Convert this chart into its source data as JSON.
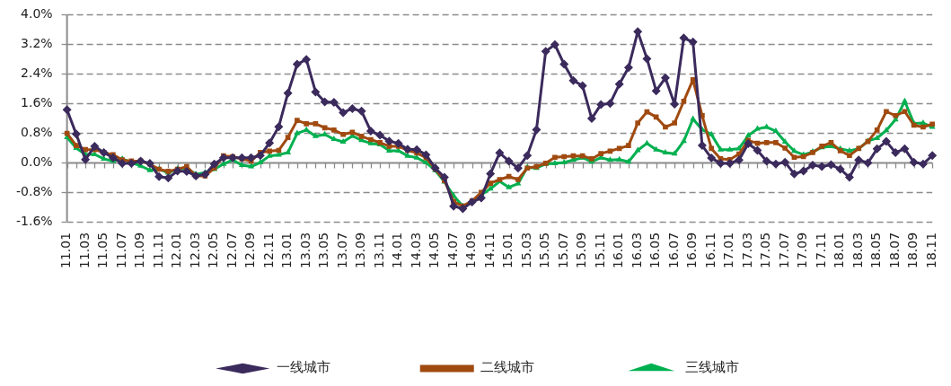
{
  "chart_data": {
    "type": "line",
    "categories": [
      "11.01",
      null,
      "11.03",
      null,
      "11.05",
      null,
      "11.07",
      null,
      "11.09",
      null,
      "11.11",
      null,
      "12.01",
      null,
      "12.03",
      null,
      "12.05",
      null,
      "12.07",
      null,
      "12.09",
      null,
      "12.11",
      null,
      "13.01",
      null,
      "13.03",
      null,
      "13.05",
      null,
      "13.07",
      null,
      "13.09",
      null,
      "13.11",
      null,
      "14.01",
      null,
      "14.03",
      null,
      "14.05",
      null,
      "14.07",
      null,
      "14.09",
      null,
      "14.11",
      null,
      "15.01",
      null,
      "15.03",
      null,
      "15.05",
      null,
      "15.07",
      null,
      "15.09",
      null,
      "15.11",
      null,
      "16.01",
      null,
      "16.03",
      null,
      "16.05",
      null,
      "16.07",
      null,
      "16.09",
      null,
      "16.11",
      null,
      "17.01",
      null,
      "17.03",
      null,
      "17.05",
      null,
      "17.07",
      null,
      "17.09",
      null,
      "17.11",
      null,
      "18.01",
      null,
      "18.03",
      null,
      "18.05",
      null,
      "18.07",
      null,
      "18.09",
      null,
      "18.11"
    ],
    "series": [
      {
        "name": "一线城市",
        "color": "#3b2a5c",
        "marker": "diamond",
        "values": [
          1.43,
          0.77,
          0.08,
          0.44,
          0.27,
          0.13,
          -0.02,
          -0.02,
          0.04,
          -0.02,
          -0.38,
          -0.42,
          -0.23,
          -0.24,
          -0.36,
          -0.32,
          -0.04,
          0.13,
          0.13,
          0.13,
          0.13,
          0.19,
          0.53,
          0.97,
          1.88,
          2.66,
          2.79,
          1.91,
          1.64,
          1.63,
          1.35,
          1.46,
          1.39,
          0.85,
          0.74,
          0.58,
          0.52,
          0.36,
          0.35,
          0.21,
          -0.15,
          -0.4,
          -1.18,
          -1.25,
          -1.07,
          -0.96,
          -0.3,
          0.26,
          0.04,
          -0.15,
          0.19,
          0.89,
          3.01,
          3.19,
          2.66,
          2.22,
          2.08,
          1.19,
          1.57,
          1.6,
          2.12,
          2.57,
          3.54,
          2.81,
          1.94,
          2.29,
          1.58,
          3.37,
          3.26,
          0.46,
          0.12,
          -0.02,
          -0.02,
          0.07,
          0.51,
          0.33,
          0.04,
          -0.04,
          0.01,
          -0.31,
          -0.23,
          -0.07,
          -0.11,
          -0.06,
          -0.18,
          -0.4,
          0.07,
          -0.01,
          0.37,
          0.57,
          0.27,
          0.37,
          0.01,
          -0.04,
          0.19
        ]
      },
      {
        "name": "二线城市",
        "color": "#a04a10",
        "marker": "square",
        "values": [
          0.79,
          0.46,
          0.35,
          0.35,
          0.27,
          0.21,
          0.07,
          0.04,
          0.04,
          -0.04,
          -0.18,
          -0.24,
          -0.18,
          -0.11,
          -0.36,
          -0.36,
          -0.15,
          0.18,
          0.16,
          0.1,
          0.04,
          0.27,
          0.31,
          0.33,
          0.68,
          1.14,
          1.05,
          1.05,
          0.94,
          0.88,
          0.76,
          0.82,
          0.71,
          0.62,
          0.54,
          0.44,
          0.44,
          0.33,
          0.26,
          0.13,
          -0.17,
          -0.49,
          -1.06,
          -1.18,
          -1.04,
          -0.81,
          -0.56,
          -0.46,
          -0.38,
          -0.46,
          -0.15,
          -0.11,
          -0.02,
          0.14,
          0.16,
          0.18,
          0.18,
          0.1,
          0.24,
          0.31,
          0.38,
          0.46,
          1.07,
          1.37,
          1.23,
          0.96,
          1.07,
          1.66,
          2.24,
          1.27,
          0.38,
          0.1,
          0.08,
          0.23,
          0.6,
          0.52,
          0.54,
          0.54,
          0.39,
          0.14,
          0.16,
          0.27,
          0.44,
          0.54,
          0.32,
          0.19,
          0.38,
          0.57,
          0.88,
          1.38,
          1.27,
          1.38,
          1.01,
          0.96,
          1.04
        ]
      },
      {
        "name": "三线城市",
        "color": "#00b050",
        "marker": "triangle",
        "values": [
          0.68,
          0.39,
          0.22,
          0.22,
          0.1,
          0.04,
          0.1,
          0.0,
          -0.09,
          -0.21,
          -0.18,
          -0.28,
          -0.17,
          -0.15,
          -0.32,
          -0.27,
          -0.18,
          -0.04,
          0.07,
          -0.07,
          -0.11,
          0.0,
          0.18,
          0.21,
          0.27,
          0.79,
          0.88,
          0.71,
          0.76,
          0.63,
          0.56,
          0.72,
          0.6,
          0.52,
          0.49,
          0.32,
          0.32,
          0.18,
          0.13,
          0.0,
          -0.21,
          -0.52,
          -0.9,
          -1.18,
          -1.06,
          -0.87,
          -0.71,
          -0.51,
          -0.67,
          -0.57,
          -0.13,
          -0.15,
          -0.04,
          -0.02,
          0.0,
          0.07,
          0.13,
          0.02,
          0.13,
          0.07,
          0.08,
          0.02,
          0.33,
          0.52,
          0.35,
          0.27,
          0.24,
          0.58,
          1.18,
          0.89,
          0.76,
          0.35,
          0.35,
          0.38,
          0.73,
          0.91,
          0.96,
          0.85,
          0.56,
          0.31,
          0.21,
          0.29,
          0.41,
          0.44,
          0.37,
          0.32,
          0.37,
          0.58,
          0.66,
          0.87,
          1.16,
          1.66,
          1.06,
          1.07,
          0.96
        ]
      }
    ],
    "ylim": [
      -1.6,
      4.0
    ],
    "yticks": [
      {
        "value": -1.6,
        "label": "-1.6%"
      },
      {
        "value": -0.8,
        "label": "-0.8%"
      },
      {
        "value": 0,
        "label": "0.0%"
      },
      {
        "value": 0.8,
        "label": "0.8%"
      },
      {
        "value": 1.6,
        "label": "1.6%"
      },
      {
        "value": 2.4,
        "label": "2.4%"
      },
      {
        "value": 3.2,
        "label": "3.2%"
      },
      {
        "value": 4.0,
        "label": "4.0%"
      }
    ],
    "grid": "y",
    "legend": "bottom"
  }
}
